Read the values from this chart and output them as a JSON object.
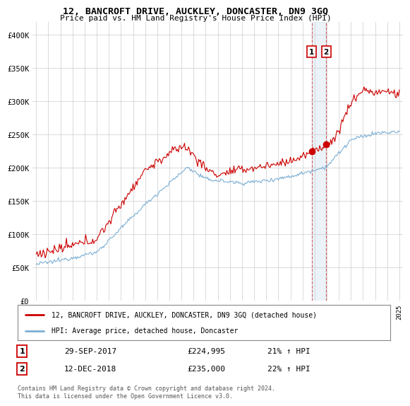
{
  "title": "12, BANCROFT DRIVE, AUCKLEY, DONCASTER, DN9 3GQ",
  "subtitle": "Price paid vs. HM Land Registry's House Price Index (HPI)",
  "x_start_year": 1995,
  "x_end_year": 2025,
  "ylim": [
    0,
    420000
  ],
  "yticks": [
    0,
    50000,
    100000,
    150000,
    200000,
    250000,
    300000,
    350000,
    400000
  ],
  "ytick_labels": [
    "£0",
    "£50K",
    "£100K",
    "£150K",
    "£200K",
    "£250K",
    "£300K",
    "£350K",
    "£400K"
  ],
  "hpi_color": "#7bafd4",
  "price_color": "#cc0000",
  "marker1_date": 2017.75,
  "marker1_price": 224995,
  "marker2_date": 2018.95,
  "marker2_price": 235000,
  "marker1_label": "29-SEP-2017",
  "marker1_value": "£224,995",
  "marker1_pct": "21% ↑ HPI",
  "marker2_label": "12-DEC-2018",
  "marker2_value": "£235,000",
  "marker2_pct": "22% ↑ HPI",
  "legend_line1": "12, BANCROFT DRIVE, AUCKLEY, DONCASTER, DN9 3GQ (detached house)",
  "legend_line2": "HPI: Average price, detached house, Doncaster",
  "footer": "Contains HM Land Registry data © Crown copyright and database right 2024.\nThis data is licensed under the Open Government Licence v3.0.",
  "background_color": "#ffffff",
  "grid_color": "#cccccc"
}
